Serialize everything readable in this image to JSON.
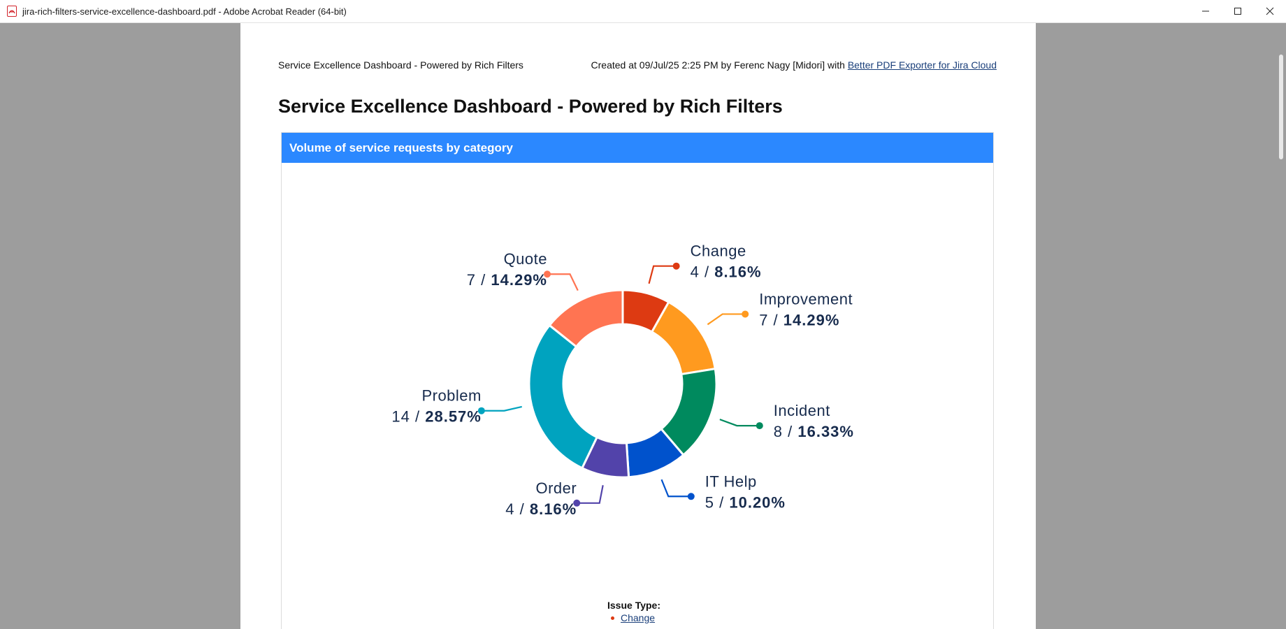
{
  "window": {
    "title": "jira-rich-filters-service-excellence-dashboard.pdf - Adobe Acrobat Reader (64-bit)"
  },
  "page": {
    "header_left": "Service Excellence Dashboard - Powered by Rich Filters",
    "header_right": "Created at 09/Jul/25 2:25 PM by Ferenc Nagy [Midori] with ",
    "header_link": "Better PDF Exporter for Jira Cloud",
    "title": "Service Excellence Dashboard - Powered by Rich Filters"
  },
  "panel": {
    "title": "Volume of service requests by category"
  },
  "legend": {
    "title": "Issue Type:",
    "items": [
      {
        "label": "Change",
        "color": "#dd3a12"
      }
    ]
  },
  "chart_data": {
    "type": "pie",
    "donut": true,
    "slices": [
      {
        "label": "Change",
        "value": 4,
        "percent": "8.16%",
        "color": "#dd3a12"
      },
      {
        "label": "Improvement",
        "value": 7,
        "percent": "14.29%",
        "color": "#ff9a1f"
      },
      {
        "label": "Incident",
        "value": 8,
        "percent": "16.33%",
        "color": "#008a5e"
      },
      {
        "label": "IT Help",
        "value": 5,
        "percent": "10.20%",
        "color": "#0052cc"
      },
      {
        "label": "Order",
        "value": 4,
        "percent": "8.16%",
        "color": "#5243aa"
      },
      {
        "label": "Problem",
        "value": 14,
        "percent": "28.57%",
        "color": "#00a3bf"
      },
      {
        "label": "Quote",
        "value": 7,
        "percent": "14.29%",
        "color": "#ff7452"
      }
    ]
  }
}
